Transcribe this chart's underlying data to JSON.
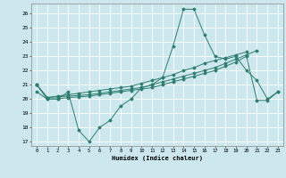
{
  "xlabel": "Humidex (Indice chaleur)",
  "x_values": [
    0,
    1,
    2,
    3,
    4,
    5,
    6,
    7,
    8,
    9,
    10,
    11,
    12,
    13,
    14,
    15,
    16,
    17,
    18,
    19,
    20,
    21,
    22,
    23
  ],
  "line1": [
    21.0,
    20.0,
    20.0,
    20.5,
    17.8,
    17.0,
    18.0,
    18.5,
    19.5,
    20.0,
    20.8,
    21.0,
    21.5,
    23.7,
    26.3,
    26.3,
    24.5,
    23.0,
    22.8,
    23.0,
    22.0,
    21.3,
    20.0,
    20.5
  ],
  "line2": [
    21.0,
    20.1,
    20.2,
    20.3,
    20.4,
    20.5,
    20.6,
    20.7,
    20.8,
    20.9,
    21.1,
    21.3,
    21.5,
    21.7,
    22.0,
    22.2,
    22.5,
    22.7,
    22.9,
    23.1,
    23.3,
    null,
    null,
    null
  ],
  "line3": [
    21.0,
    20.1,
    20.15,
    20.2,
    20.25,
    20.3,
    20.4,
    20.5,
    20.6,
    20.7,
    20.8,
    21.0,
    21.2,
    21.4,
    21.6,
    21.8,
    22.0,
    22.2,
    22.5,
    22.8,
    23.1,
    23.4,
    null,
    null
  ],
  "line4": [
    20.5,
    20.0,
    20.0,
    20.1,
    20.15,
    20.2,
    20.3,
    20.4,
    20.5,
    20.6,
    20.7,
    20.8,
    21.0,
    21.2,
    21.4,
    21.6,
    21.8,
    22.0,
    22.3,
    22.6,
    23.0,
    19.9,
    19.9,
    20.5
  ],
  "ylim": [
    16.7,
    26.7
  ],
  "xlim": [
    -0.5,
    23.5
  ],
  "yticks": [
    17,
    18,
    19,
    20,
    21,
    22,
    23,
    24,
    25,
    26
  ],
  "xticks": [
    0,
    1,
    2,
    3,
    4,
    5,
    6,
    7,
    8,
    9,
    10,
    11,
    12,
    13,
    14,
    15,
    16,
    17,
    18,
    19,
    20,
    21,
    22,
    23
  ],
  "line_color": "#2e7d6e",
  "bg_color": "#cce8ee",
  "grid_color": "#ffffff"
}
